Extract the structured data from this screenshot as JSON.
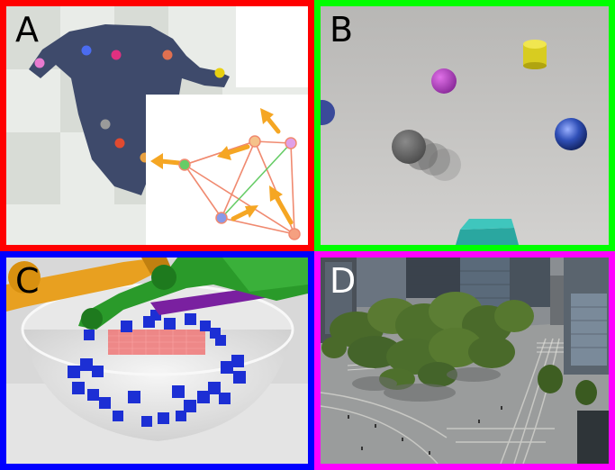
{
  "panels": [
    {
      "id": "A",
      "label": "A",
      "border_color": "#ff0000",
      "content": "cloth-manipulation-keypoints"
    },
    {
      "id": "B",
      "label": "B",
      "border_color": "#00ff00",
      "content": "rendered-objects-scene"
    },
    {
      "id": "C",
      "label": "C",
      "border_color": "#0000ff",
      "content": "robot-arms-bowl-cubes"
    },
    {
      "id": "D",
      "label": "D",
      "border_color": "#ff00ff",
      "content": "aerial-city-view"
    }
  ],
  "colors": {
    "cloth": "#3e4a6b",
    "arrow": "#f5a623",
    "keypoint_edges": "#f08a70",
    "bowl": "#e8e8e8",
    "cube": "#1c2fd4",
    "arm_orange": "#e8a020",
    "arm_green": "#2a9a2a",
    "arm_purple": "#7a20a0"
  }
}
